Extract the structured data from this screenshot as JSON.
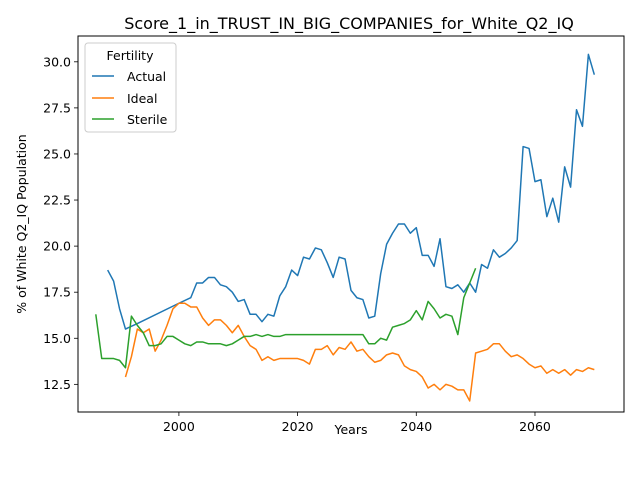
{
  "chart_data": {
    "type": "line",
    "title": "Score_1_in_TRUST_IN_BIG_COMPANIES_for_White_Q2_IQ",
    "xlabel": "Years",
    "ylabel": "% of White Q2_IQ Population",
    "xlim": [
      1983,
      2075
    ],
    "ylim": [
      11.0,
      31.4
    ],
    "xticks": [
      2000,
      2020,
      2040,
      2060
    ],
    "yticks": [
      12.5,
      15.0,
      17.5,
      20.0,
      22.5,
      25.0,
      27.5,
      30.0
    ],
    "legend": {
      "title": "Fertility",
      "position": "top-left"
    },
    "colors": {
      "Actual": "#1f77b4",
      "Ideal": "#ff7f0e",
      "Sterile": "#2ca02c"
    },
    "series": [
      {
        "name": "Actual",
        "x": [
          1988,
          1989,
          1990,
          1991,
          1993,
          2000,
          2002,
          2003,
          2004,
          2005,
          2006,
          2007,
          2008,
          2009,
          2010,
          2011,
          2012,
          2013,
          2014,
          2015,
          2016,
          2017,
          2018,
          2019,
          2020,
          2021,
          2022,
          2023,
          2024,
          2025,
          2026,
          2027,
          2028,
          2029,
          2030,
          2031,
          2032,
          2033,
          2034,
          2035,
          2036,
          2037,
          2038,
          2039,
          2040,
          2041,
          2042,
          2043,
          2044,
          2045,
          2046,
          2047,
          2048,
          2049,
          2050,
          2051,
          2052,
          2053,
          2054,
          2055,
          2056,
          2057,
          2058,
          2059,
          2060,
          2061,
          2062,
          2063,
          2064,
          2065,
          2066,
          2067,
          2068,
          2069,
          2070
        ],
        "y": [
          18.7,
          18.1,
          16.6,
          15.5,
          15.8,
          16.9,
          17.2,
          18.0,
          18.0,
          18.3,
          18.3,
          17.9,
          17.8,
          17.5,
          17.0,
          17.1,
          16.3,
          16.3,
          15.9,
          16.3,
          16.2,
          17.3,
          17.8,
          18.7,
          18.4,
          19.4,
          19.3,
          19.9,
          19.8,
          19.1,
          18.3,
          19.4,
          19.3,
          17.6,
          17.2,
          17.1,
          16.1,
          16.2,
          18.5,
          20.1,
          20.7,
          21.2,
          21.2,
          20.7,
          21.0,
          19.5,
          19.5,
          18.9,
          20.4,
          17.8,
          17.7,
          17.9,
          17.5,
          18.0,
          17.5,
          19.0,
          18.8,
          19.8,
          19.4,
          19.6,
          19.9,
          20.3,
          25.4,
          25.3,
          23.5,
          23.6,
          21.6,
          22.6,
          21.3,
          24.3,
          23.2,
          27.4,
          26.5,
          30.4,
          29.3
        ]
      },
      {
        "name": "Ideal",
        "x": [
          1991,
          1992,
          1993,
          1994,
          1995,
          1996,
          1997,
          1998,
          1999,
          2000,
          2001,
          2002,
          2003,
          2004,
          2005,
          2006,
          2007,
          2008,
          2009,
          2010,
          2011,
          2012,
          2013,
          2014,
          2015,
          2016,
          2017,
          2018,
          2019,
          2020,
          2021,
          2022,
          2023,
          2024,
          2025,
          2026,
          2027,
          2028,
          2029,
          2030,
          2031,
          2032,
          2033,
          2034,
          2035,
          2036,
          2037,
          2038,
          2039,
          2040,
          2041,
          2042,
          2043,
          2044,
          2045,
          2046,
          2047,
          2048,
          2049,
          2050,
          2051,
          2052,
          2053,
          2054,
          2055,
          2056,
          2057,
          2058,
          2059,
          2060,
          2061,
          2062,
          2063,
          2064,
          2065,
          2066,
          2067,
          2068,
          2069,
          2070
        ],
        "y": [
          12.9,
          14.0,
          15.5,
          15.3,
          15.5,
          14.3,
          14.9,
          15.7,
          16.6,
          16.9,
          16.9,
          16.7,
          16.7,
          16.1,
          15.7,
          16.0,
          16.0,
          15.7,
          15.3,
          15.7,
          15.1,
          14.6,
          14.4,
          13.8,
          14.0,
          13.8,
          13.9,
          13.9,
          13.9,
          13.9,
          13.8,
          13.6,
          14.4,
          14.4,
          14.6,
          14.1,
          14.5,
          14.4,
          14.8,
          14.3,
          14.4,
          14.0,
          13.7,
          13.8,
          14.1,
          14.2,
          14.1,
          13.5,
          13.3,
          13.2,
          12.9,
          12.3,
          12.5,
          12.2,
          12.5,
          12.4,
          12.2,
          12.2,
          11.6,
          14.2,
          14.3,
          14.4,
          14.7,
          14.7,
          14.3,
          14.0,
          14.1,
          13.9,
          13.6,
          13.4,
          13.5,
          13.1,
          13.3,
          13.1,
          13.3,
          13.0,
          13.3,
          13.2,
          13.4,
          13.3
        ]
      },
      {
        "name": "Sterile",
        "x": [
          1986,
          1987,
          1988,
          1989,
          1990,
          1991,
          1992,
          1993,
          1994,
          1995,
          1996,
          1997,
          1998,
          1999,
          2000,
          2001,
          2002,
          2003,
          2004,
          2005,
          2006,
          2007,
          2008,
          2009,
          2010,
          2011,
          2012,
          2013,
          2014,
          2015,
          2016,
          2017,
          2018,
          2019,
          2020,
          2021,
          2022,
          2023,
          2024,
          2025,
          2026,
          2027,
          2028,
          2029,
          2030,
          2031,
          2032,
          2033,
          2034,
          2035,
          2036,
          2037,
          2038,
          2039,
          2040,
          2041,
          2042,
          2043,
          2044,
          2045,
          2046,
          2047,
          2048,
          2049,
          2050
        ],
        "y": [
          16.3,
          13.9,
          13.9,
          13.9,
          13.8,
          13.4,
          16.2,
          15.7,
          15.3,
          14.6,
          14.6,
          14.7,
          15.1,
          15.1,
          14.9,
          14.7,
          14.6,
          14.8,
          14.8,
          14.7,
          14.7,
          14.7,
          14.6,
          14.7,
          14.9,
          15.1,
          15.1,
          15.2,
          15.1,
          15.2,
          15.1,
          15.1,
          15.2,
          15.2,
          15.2,
          15.2,
          15.2,
          15.2,
          15.2,
          15.2,
          15.2,
          15.2,
          15.2,
          15.2,
          15.2,
          15.2,
          14.7,
          14.7,
          15.0,
          14.9,
          15.6,
          15.7,
          15.8,
          16.0,
          16.5,
          16.0,
          17.0,
          16.6,
          16.1,
          16.3,
          16.2,
          15.2,
          17.2,
          18.0,
          18.8
        ]
      }
    ]
  }
}
